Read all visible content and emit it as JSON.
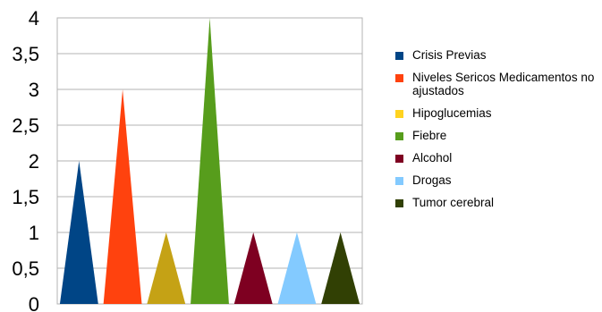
{
  "chart_data": {
    "type": "bar",
    "mark": "triangle",
    "categories": [
      "Crisis Previas",
      "Niveles Sericos Medicamentos no ajustados",
      "Hipoglucemias",
      "Fiebre",
      "Alcohol",
      "Drogas",
      "Tumor cerebral"
    ],
    "values": [
      2,
      3,
      1,
      4,
      1,
      1,
      1
    ],
    "bar_colors": [
      "#004586",
      "#ff420e",
      "#c5a215",
      "#579d1c",
      "#7e0021",
      "#83caff",
      "#314004"
    ],
    "legend_colors": [
      "#004586",
      "#ff420e",
      "#ffd320",
      "#579d1c",
      "#7e0021",
      "#83caff",
      "#314004"
    ],
    "ylim": [
      0,
      4
    ],
    "y_ticks": [
      "0",
      "0,5",
      "1",
      "1,5",
      "2",
      "2,5",
      "3",
      "3,5",
      "4"
    ],
    "grid": true,
    "legend_position": "right",
    "title": "",
    "xlabel": "",
    "ylabel": ""
  }
}
